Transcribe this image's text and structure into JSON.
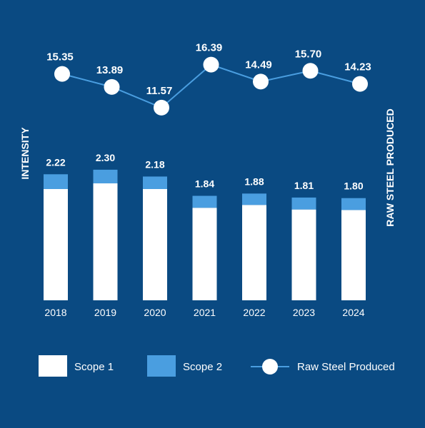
{
  "chart_data": {
    "type": "bar",
    "categories": [
      "2018",
      "2019",
      "2020",
      "2021",
      "2022",
      "2023",
      "2024"
    ],
    "series": [
      {
        "name": "Scope 1",
        "values": [
          1.96,
          2.06,
          1.96,
          1.63,
          1.68,
          1.6,
          1.59
        ],
        "color": "#ffffff"
      },
      {
        "name": "Scope 2",
        "values": [
          0.26,
          0.24,
          0.22,
          0.21,
          0.2,
          0.21,
          0.21
        ],
        "color": "#4a9ee0"
      }
    ],
    "bar_totals_labels": [
      "2.22",
      "2.30",
      "2.18",
      "1.84",
      "1.88",
      "1.81",
      "1.80"
    ],
    "line_series": {
      "name": "Raw Steel Produced",
      "values": [
        15.35,
        13.89,
        11.57,
        16.39,
        14.49,
        15.7,
        14.23
      ],
      "labels": [
        "15.35",
        "13.89",
        "11.57",
        "16.39",
        "14.49",
        "15.70",
        "14.23"
      ],
      "color": "#4a9ee0",
      "marker_color": "#ffffff"
    },
    "left_axis_label": "INTENSITY",
    "right_axis_label": "RAW STEEL PRODUCED",
    "legend": [
      "Scope 1",
      "Scope 2",
      "Raw Steel Produced"
    ],
    "legend_placement": "bottom",
    "bar_ylim": [
      0,
      2.5
    ],
    "line_ylim": [
      11.0,
      17.0
    ],
    "background_color": "#0a4a82",
    "grid": false
  }
}
